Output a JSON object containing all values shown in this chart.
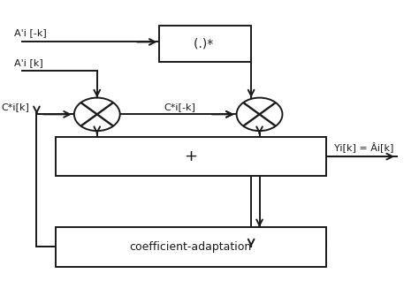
{
  "fig_width": 4.74,
  "fig_height": 3.44,
  "dpi": 100,
  "bg_color": "#ffffff",
  "line_color": "#1a1a1a",
  "labels": {
    "input_top": "A'i [-k]",
    "input_mid": "A'i [k]",
    "coeff_left": "C*i[k]",
    "coeff_right": "C*i[-k]",
    "output": "Yi[k] = Âi[k]",
    "box_top": "(.)* ",
    "box_sum": "+",
    "box_adapt": "coefficient-adaptation"
  }
}
